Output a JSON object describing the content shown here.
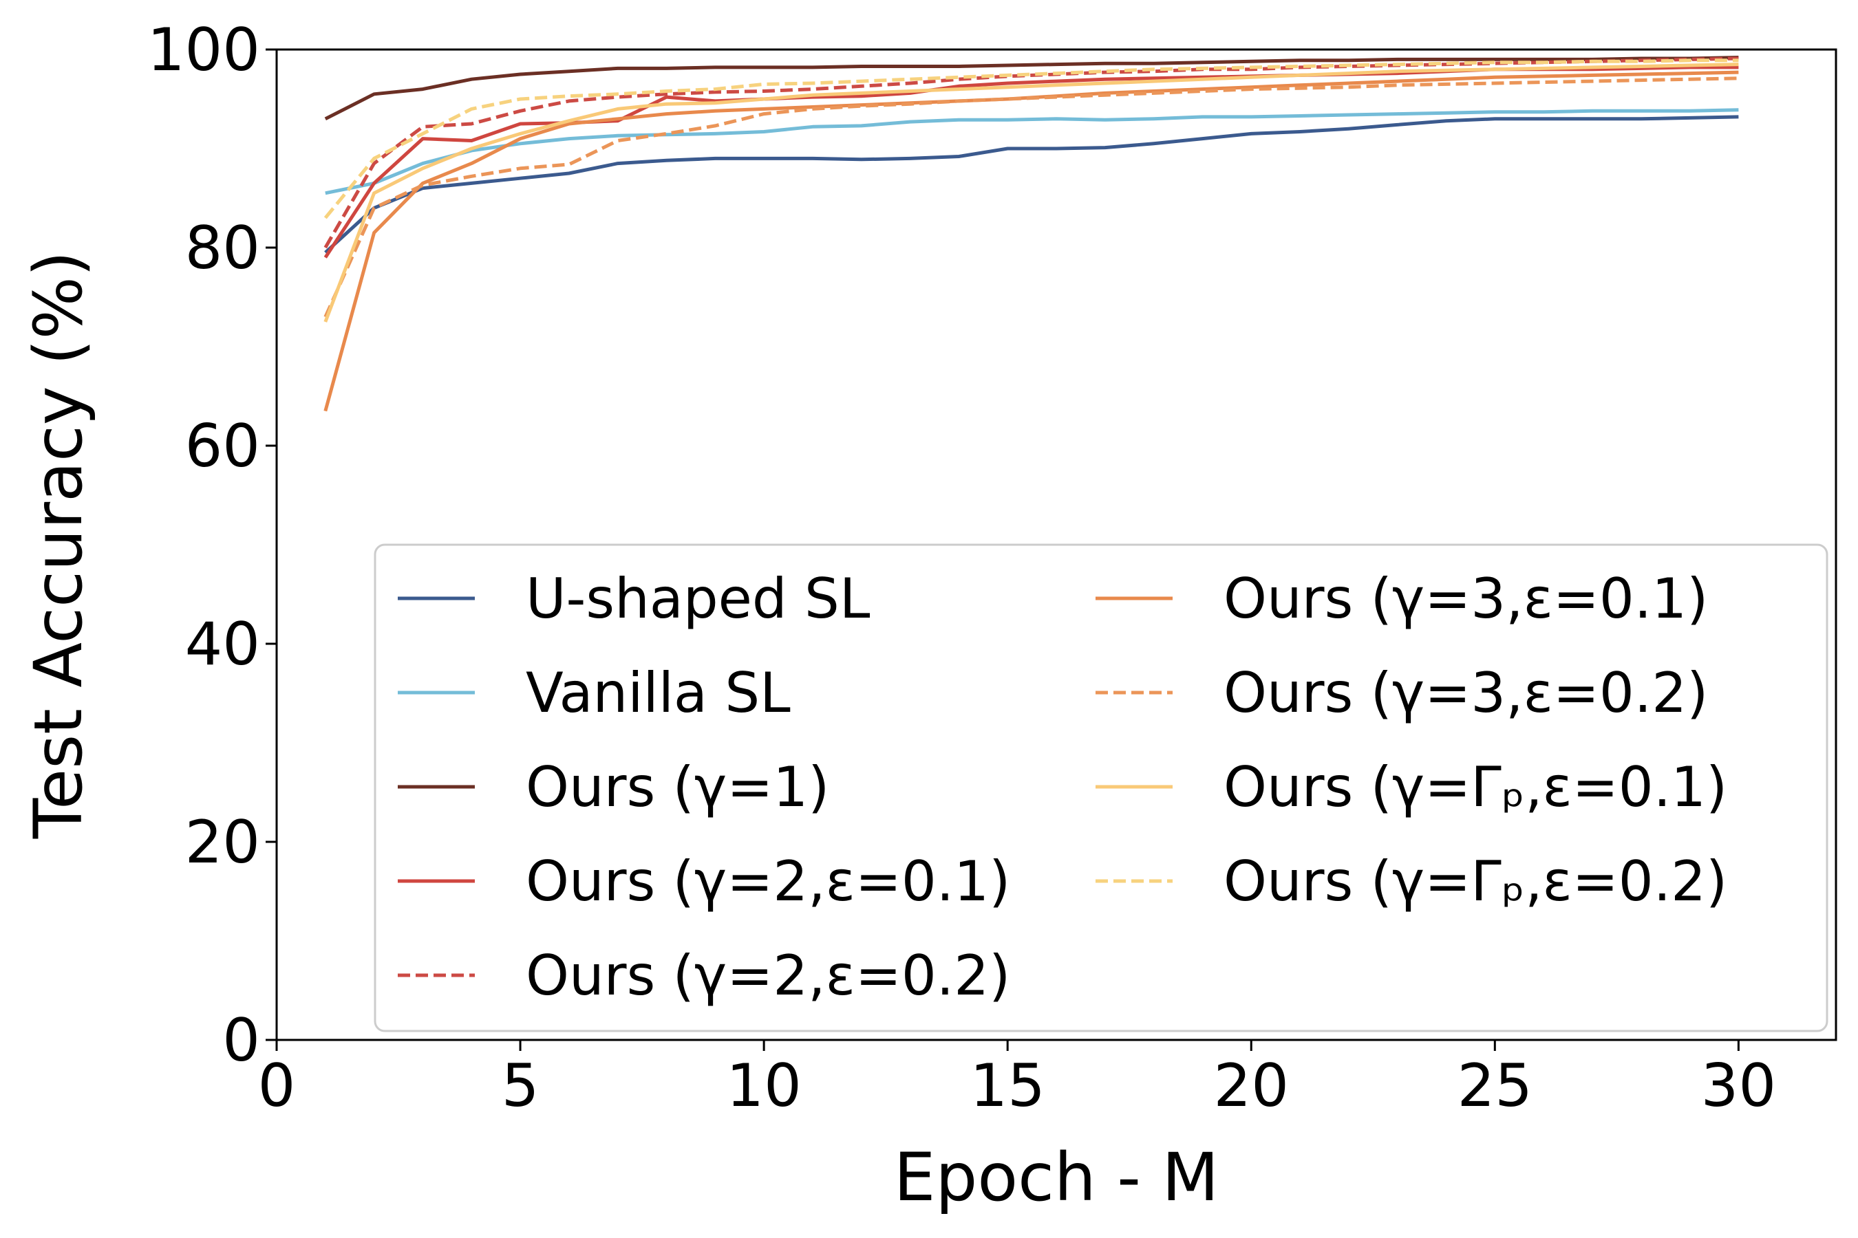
{
  "chart_data": {
    "type": "line",
    "title": "",
    "xlabel": "Epoch - M",
    "ylabel": "Test Accuracy (%)",
    "xlim": [
      0,
      32
    ],
    "ylim": [
      0,
      100
    ],
    "xticks": [
      0,
      5,
      10,
      15,
      20,
      25,
      30
    ],
    "yticks": [
      0,
      20,
      40,
      60,
      80,
      100
    ],
    "grid": false,
    "legend_position": "lower-right",
    "x": [
      1,
      2,
      3,
      4,
      5,
      6,
      7,
      8,
      9,
      10,
      11,
      12,
      13,
      14,
      15,
      16,
      17,
      18,
      19,
      20,
      21,
      22,
      23,
      24,
      25,
      26,
      27,
      28,
      29,
      30
    ],
    "series": [
      {
        "name": "U-shaped SL",
        "color": "#3b5a8e",
        "dash": "solid",
        "values": [
          79.5,
          84,
          86,
          86.5,
          87,
          87.5,
          88.5,
          88.8,
          89,
          89,
          89,
          88.9,
          89,
          89.2,
          90,
          90,
          90.1,
          90.5,
          91,
          91.5,
          91.7,
          92,
          92.4,
          92.8,
          93,
          93,
          93,
          93,
          93.1,
          93.2
        ]
      },
      {
        "name": "Vanilla SL",
        "color": "#74bcd8",
        "dash": "solid",
        "values": [
          85.5,
          86.5,
          88.5,
          89.8,
          90.5,
          91,
          91.3,
          91.4,
          91.5,
          91.7,
          92.2,
          92.3,
          92.7,
          92.9,
          92.9,
          93,
          92.9,
          93,
          93.2,
          93.2,
          93.3,
          93.4,
          93.5,
          93.6,
          93.7,
          93.7,
          93.8,
          93.8,
          93.8,
          93.9
        ]
      },
      {
        "name": "Ours (γ=1)",
        "color": "#6b2f24",
        "dash": "solid",
        "values": [
          93,
          95.5,
          96,
          97,
          97.5,
          97.8,
          98.1,
          98.1,
          98.2,
          98.2,
          98.2,
          98.3,
          98.3,
          98.3,
          98.4,
          98.5,
          98.6,
          98.6,
          98.7,
          98.8,
          98.9,
          98.9,
          99,
          99,
          99,
          99,
          99,
          99.1,
          99.1,
          99.2
        ]
      },
      {
        "name": "Ours (γ=2,ε=0.1)",
        "color": "#cf463f",
        "dash": "solid",
        "values": [
          79,
          86.5,
          91,
          90.8,
          92.5,
          92.6,
          92.8,
          95.2,
          94.8,
          95,
          95.2,
          95.3,
          95.6,
          96.3,
          96.6,
          96.8,
          97,
          97.1,
          97.2,
          97.3,
          97.4,
          97.5,
          97.6,
          97.8,
          98,
          98,
          98,
          98.1,
          98.2,
          98.2
        ]
      },
      {
        "name": "Ours (γ=2,ε=0.2)",
        "color": "#cc4a44",
        "dash": "dashed",
        "values": [
          80,
          88.5,
          92.2,
          92.5,
          93.8,
          94.8,
          95.2,
          95.5,
          95.7,
          95.8,
          96,
          96.3,
          96.6,
          97,
          97.3,
          97.5,
          97.7,
          97.8,
          98,
          98,
          98.2,
          98.3,
          98.4,
          98.5,
          98.6,
          98.7,
          98.8,
          98.9,
          99,
          99.1
        ]
      },
      {
        "name": "Ours (γ=3,ε=0.1)",
        "color": "#e8894c",
        "dash": "solid",
        "values": [
          63.5,
          81.5,
          86.5,
          88.5,
          91,
          92.5,
          93,
          93.5,
          93.8,
          94,
          94.2,
          94.4,
          94.6,
          94.8,
          95,
          95.3,
          95.6,
          95.8,
          96,
          96.2,
          96.4,
          96.6,
          96.8,
          97,
          97.2,
          97.3,
          97.4,
          97.5,
          97.6,
          97.7
        ]
      },
      {
        "name": "Ours (γ=3,ε=0.2)",
        "color": "#eb9558",
        "dash": "dashed",
        "values": [
          73,
          84,
          86.3,
          87.2,
          88,
          88.4,
          90.8,
          91.5,
          92.3,
          93.5,
          94,
          94.3,
          94.5,
          94.8,
          95,
          95.2,
          95.4,
          95.6,
          95.8,
          96,
          96.1,
          96.2,
          96.4,
          96.5,
          96.6,
          96.7,
          96.8,
          96.9,
          97,
          97.1
        ]
      },
      {
        "name": "Ours (γ=Γₚ,ε=0.1)",
        "color": "#f9c977",
        "dash": "solid",
        "values": [
          72.5,
          85.5,
          88,
          90,
          91.5,
          92.8,
          94,
          94.5,
          94.6,
          95,
          95.4,
          95.6,
          95.8,
          96,
          96.2,
          96.4,
          96.6,
          96.8,
          97,
          97.2,
          97.4,
          97.6,
          97.8,
          97.9,
          98,
          98.1,
          98.2,
          98.3,
          98.4,
          98.5
        ]
      },
      {
        "name": "Ours (γ=Γₚ,ε=0.2)",
        "color": "#f7d27e",
        "dash": "dashed",
        "values": [
          83,
          89,
          91.5,
          94,
          95,
          95.3,
          95.5,
          95.8,
          96,
          96.5,
          96.6,
          96.8,
          97,
          97.2,
          97.4,
          97.6,
          97.8,
          98,
          98.1,
          98.2,
          98.3,
          98.4,
          98.5,
          98.6,
          98.7,
          98.7,
          98.8,
          98.8,
          98.9,
          98.9
        ]
      }
    ]
  }
}
